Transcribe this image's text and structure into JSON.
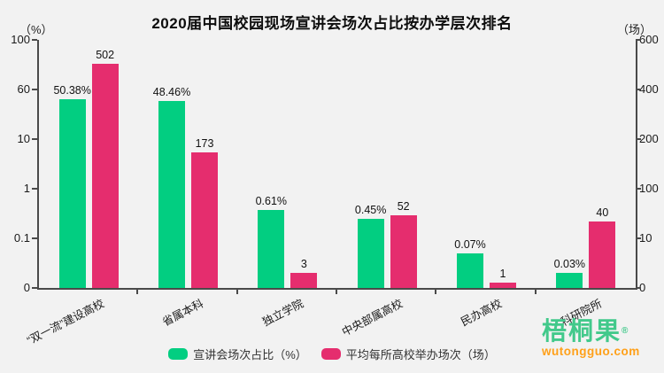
{
  "title": "2020届中国校园现场宣讲会场次占比按办学层次排名",
  "axes": {
    "left_unit": "（%）",
    "right_unit": "（场）"
  },
  "colors": {
    "green": "#02CE81",
    "pink": "#E52D6E",
    "background": "#F2F2F2",
    "axis": "#4A4A4A",
    "text": "#1A1A1A",
    "logo_green": "#42C98B",
    "logo_orange": "#FFA019"
  },
  "chart_data": {
    "type": "bar",
    "categories": [
      "“双一流”建设高校",
      "省属本科",
      "独立学院",
      "中央部属高校",
      "民办高校",
      "科研院所"
    ],
    "series": [
      {
        "name": "宣讲会场次占比（%）",
        "axis": "left",
        "color_key": "green",
        "values": [
          50.38,
          48.46,
          0.61,
          0.45,
          0.07,
          0.03
        ],
        "labels": [
          "50.38%",
          "48.46%",
          "0.61%",
          "0.45%",
          "0.07%",
          "0.03%"
        ]
      },
      {
        "name": "平均每所高校举办场次（场）",
        "axis": "right",
        "color_key": "pink",
        "values": [
          502,
          173,
          3,
          52,
          1,
          40
        ],
        "labels": [
          "502",
          "173",
          "3",
          "52",
          "1",
          "40"
        ]
      }
    ],
    "left_axis": {
      "ticks": [
        0,
        0.1,
        1,
        10,
        60,
        100
      ],
      "tick_labels": [
        "0",
        "0.1",
        "1",
        "10",
        "60",
        "100"
      ]
    },
    "right_axis": {
      "ticks": [
        0,
        10,
        100,
        200,
        400,
        600
      ],
      "tick_labels": [
        "0",
        "10",
        "100",
        "200",
        "400",
        "600"
      ]
    },
    "grid": false,
    "legend_position": "bottom"
  },
  "legend": {
    "items": [
      {
        "label": "宣讲会场次占比（%）",
        "color_key": "green"
      },
      {
        "label": "平均每所高校举办场次（场）",
        "color_key": "pink"
      }
    ]
  },
  "watermark": {
    "brand": "梧桐果",
    "reg": "®",
    "domain": "wutongguo.com"
  }
}
